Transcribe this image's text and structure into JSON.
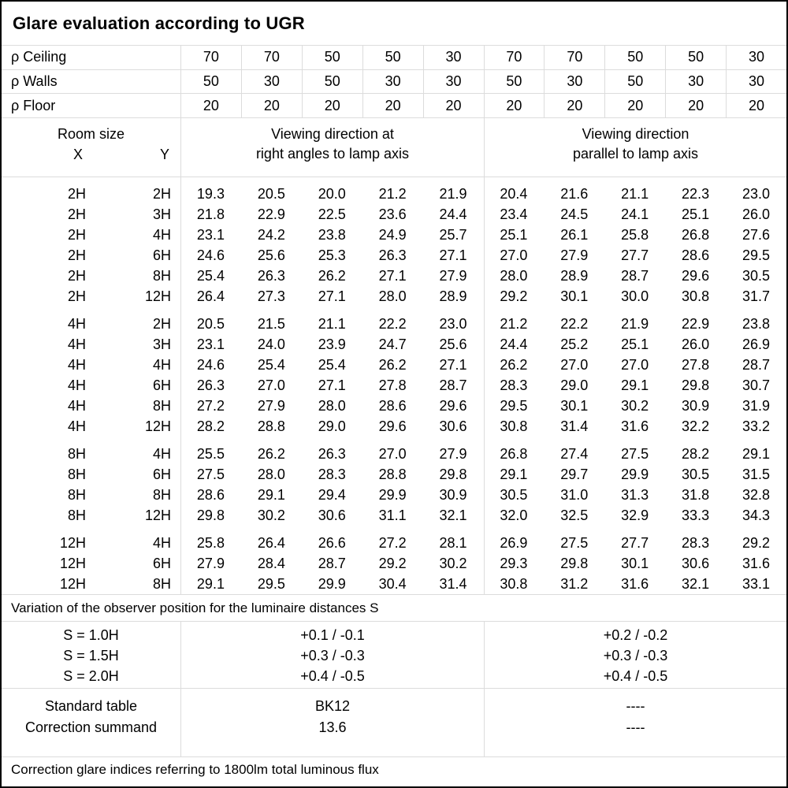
{
  "title": "Glare evaluation according to UGR",
  "colors": {
    "grid_line": "#dcdcdc",
    "border": "#000000",
    "text": "#000000",
    "background": "#ffffff"
  },
  "reflectance_rows": [
    {
      "label": "ρ Ceiling",
      "values": [
        "70",
        "70",
        "50",
        "50",
        "30",
        "70",
        "70",
        "50",
        "50",
        "30"
      ]
    },
    {
      "label": "ρ Walls",
      "values": [
        "50",
        "30",
        "50",
        "30",
        "30",
        "50",
        "30",
        "50",
        "30",
        "30"
      ]
    },
    {
      "label": "ρ Floor",
      "values": [
        "20",
        "20",
        "20",
        "20",
        "20",
        "20",
        "20",
        "20",
        "20",
        "20"
      ]
    }
  ],
  "room_header": {
    "room_size_label": "Room size",
    "x_label": "X",
    "y_label": "Y",
    "group_right_angles": [
      "Viewing direction at",
      "right angles to lamp axis"
    ],
    "group_parallel": [
      "Viewing direction",
      "parallel to lamp axis"
    ]
  },
  "ugr_table": {
    "blocks": [
      {
        "rows": [
          {
            "x": "2H",
            "y": "2H",
            "values": [
              "19.3",
              "20.5",
              "20.0",
              "21.2",
              "21.9",
              "20.4",
              "21.6",
              "21.1",
              "22.3",
              "23.0"
            ]
          },
          {
            "x": "2H",
            "y": "3H",
            "values": [
              "21.8",
              "22.9",
              "22.5",
              "23.6",
              "24.4",
              "23.4",
              "24.5",
              "24.1",
              "25.1",
              "26.0"
            ]
          },
          {
            "x": "2H",
            "y": "4H",
            "values": [
              "23.1",
              "24.2",
              "23.8",
              "24.9",
              "25.7",
              "25.1",
              "26.1",
              "25.8",
              "26.8",
              "27.6"
            ]
          },
          {
            "x": "2H",
            "y": "6H",
            "values": [
              "24.6",
              "25.6",
              "25.3",
              "26.3",
              "27.1",
              "27.0",
              "27.9",
              "27.7",
              "28.6",
              "29.5"
            ]
          },
          {
            "x": "2H",
            "y": "8H",
            "values": [
              "25.4",
              "26.3",
              "26.2",
              "27.1",
              "27.9",
              "28.0",
              "28.9",
              "28.7",
              "29.6",
              "30.5"
            ]
          },
          {
            "x": "2H",
            "y": "12H",
            "values": [
              "26.4",
              "27.3",
              "27.1",
              "28.0",
              "28.9",
              "29.2",
              "30.1",
              "30.0",
              "30.8",
              "31.7"
            ]
          }
        ]
      },
      {
        "rows": [
          {
            "x": "4H",
            "y": "2H",
            "values": [
              "20.5",
              "21.5",
              "21.1",
              "22.2",
              "23.0",
              "21.2",
              "22.2",
              "21.9",
              "22.9",
              "23.8"
            ]
          },
          {
            "x": "4H",
            "y": "3H",
            "values": [
              "23.1",
              "24.0",
              "23.9",
              "24.7",
              "25.6",
              "24.4",
              "25.2",
              "25.1",
              "26.0",
              "26.9"
            ]
          },
          {
            "x": "4H",
            "y": "4H",
            "values": [
              "24.6",
              "25.4",
              "25.4",
              "26.2",
              "27.1",
              "26.2",
              "27.0",
              "27.0",
              "27.8",
              "28.7"
            ]
          },
          {
            "x": "4H",
            "y": "6H",
            "values": [
              "26.3",
              "27.0",
              "27.1",
              "27.8",
              "28.7",
              "28.3",
              "29.0",
              "29.1",
              "29.8",
              "30.7"
            ]
          },
          {
            "x": "4H",
            "y": "8H",
            "values": [
              "27.2",
              "27.9",
              "28.0",
              "28.6",
              "29.6",
              "29.5",
              "30.1",
              "30.2",
              "30.9",
              "31.9"
            ]
          },
          {
            "x": "4H",
            "y": "12H",
            "values": [
              "28.2",
              "28.8",
              "29.0",
              "29.6",
              "30.6",
              "30.8",
              "31.4",
              "31.6",
              "32.2",
              "33.2"
            ]
          }
        ]
      },
      {
        "rows": [
          {
            "x": "8H",
            "y": "4H",
            "values": [
              "25.5",
              "26.2",
              "26.3",
              "27.0",
              "27.9",
              "26.8",
              "27.4",
              "27.5",
              "28.2",
              "29.1"
            ]
          },
          {
            "x": "8H",
            "y": "6H",
            "values": [
              "27.5",
              "28.0",
              "28.3",
              "28.8",
              "29.8",
              "29.1",
              "29.7",
              "29.9",
              "30.5",
              "31.5"
            ]
          },
          {
            "x": "8H",
            "y": "8H",
            "values": [
              "28.6",
              "29.1",
              "29.4",
              "29.9",
              "30.9",
              "30.5",
              "31.0",
              "31.3",
              "31.8",
              "32.8"
            ]
          },
          {
            "x": "8H",
            "y": "12H",
            "values": [
              "29.8",
              "30.2",
              "30.6",
              "31.1",
              "32.1",
              "32.0",
              "32.5",
              "32.9",
              "33.3",
              "34.3"
            ]
          }
        ]
      },
      {
        "rows": [
          {
            "x": "12H",
            "y": "4H",
            "values": [
              "25.8",
              "26.4",
              "26.6",
              "27.2",
              "28.1",
              "26.9",
              "27.5",
              "27.7",
              "28.3",
              "29.2"
            ]
          },
          {
            "x": "12H",
            "y": "6H",
            "values": [
              "27.9",
              "28.4",
              "28.7",
              "29.2",
              "30.2",
              "29.3",
              "29.8",
              "30.1",
              "30.6",
              "31.6"
            ]
          },
          {
            "x": "12H",
            "y": "8H",
            "values": [
              "29.1",
              "29.5",
              "29.9",
              "30.4",
              "31.4",
              "30.8",
              "31.2",
              "31.6",
              "32.1",
              "33.1"
            ]
          }
        ]
      }
    ]
  },
  "variation_note": "Variation of the observer position for the luminaire distances S",
  "s_block": {
    "labels": [
      "S = 1.0H",
      "S = 1.5H",
      "S = 2.0H"
    ],
    "right_angles": [
      "+0.1 / -0.1",
      "+0.3 / -0.3",
      "+0.4 / -0.5"
    ],
    "parallel": [
      "+0.2 / -0.2",
      "+0.3 / -0.3",
      "+0.4 / -0.5"
    ]
  },
  "standard_block": {
    "labels": [
      "Standard table",
      "Correction summand"
    ],
    "right_angles": [
      "BK12",
      "13.6"
    ],
    "parallel": [
      "----",
      "----"
    ]
  },
  "footer_note": "Correction glare indices referring to 1800lm total luminous flux"
}
